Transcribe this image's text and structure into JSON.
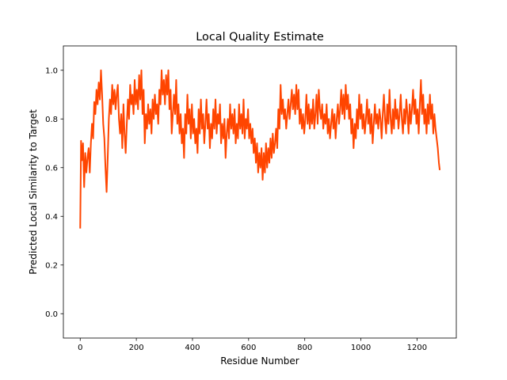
{
  "chart_data": {
    "type": "line",
    "title": "Local Quality Estimate",
    "xlabel": "Residue Number",
    "ylabel": "Predicted Local Similarity to Target",
    "xlim": [
      -60,
      1340
    ],
    "ylim": [
      -0.1,
      1.1
    ],
    "x_ticks": [
      0,
      200,
      400,
      600,
      800,
      1000,
      1200
    ],
    "y_ticks": [
      0.0,
      0.2,
      0.4,
      0.6,
      0.8,
      1.0
    ],
    "x_tick_labels": [
      "0",
      "200",
      "400",
      "600",
      "800",
      "1000",
      "1200"
    ],
    "y_tick_labels": [
      "0.0",
      "0.2",
      "0.4",
      "0.6",
      "0.8",
      "1.0"
    ],
    "grid": false,
    "series": [
      {
        "color": "#ff4500",
        "points": [
          [
            0,
            0.35
          ],
          [
            3,
            0.71
          ],
          [
            6,
            0.63
          ],
          [
            10,
            0.7
          ],
          [
            14,
            0.52
          ],
          [
            18,
            0.66
          ],
          [
            22,
            0.58
          ],
          [
            26,
            0.64
          ],
          [
            30,
            0.68
          ],
          [
            34,
            0.58
          ],
          [
            38,
            0.7
          ],
          [
            42,
            0.78
          ],
          [
            46,
            0.72
          ],
          [
            50,
            0.87
          ],
          [
            54,
            0.82
          ],
          [
            58,
            0.92
          ],
          [
            62,
            0.86
          ],
          [
            66,
            0.95
          ],
          [
            70,
            0.88
          ],
          [
            74,
            1.0
          ],
          [
            78,
            0.9
          ],
          [
            82,
            0.78
          ],
          [
            86,
            0.72
          ],
          [
            90,
            0.6
          ],
          [
            94,
            0.5
          ],
          [
            98,
            0.64
          ],
          [
            102,
            0.8
          ],
          [
            106,
            0.88
          ],
          [
            110,
            0.82
          ],
          [
            114,
            0.94
          ],
          [
            118,
            0.86
          ],
          [
            122,
            0.92
          ],
          [
            126,
            0.84
          ],
          [
            130,
            0.9
          ],
          [
            134,
            0.94
          ],
          [
            138,
            0.8
          ],
          [
            142,
            0.74
          ],
          [
            146,
            0.82
          ],
          [
            150,
            0.68
          ],
          [
            154,
            0.86
          ],
          [
            158,
            0.74
          ],
          [
            162,
            0.66
          ],
          [
            166,
            0.78
          ],
          [
            170,
            0.88
          ],
          [
            174,
            0.8
          ],
          [
            178,
            0.94
          ],
          [
            182,
            0.86
          ],
          [
            186,
            0.9
          ],
          [
            190,
            0.82
          ],
          [
            194,
            0.96
          ],
          [
            198,
            0.86
          ],
          [
            202,
            0.92
          ],
          [
            206,
            0.84
          ],
          [
            210,
            0.98
          ],
          [
            214,
            0.88
          ],
          [
            218,
            1.0
          ],
          [
            222,
            0.82
          ],
          [
            226,
            0.92
          ],
          [
            230,
            0.7
          ],
          [
            234,
            0.82
          ],
          [
            238,
            0.76
          ],
          [
            242,
            0.86
          ],
          [
            246,
            0.78
          ],
          [
            250,
            0.84
          ],
          [
            254,
            0.74
          ],
          [
            258,
            0.88
          ],
          [
            262,
            0.8
          ],
          [
            266,
            0.9
          ],
          [
            270,
            0.82
          ],
          [
            274,
            0.86
          ],
          [
            278,
            0.78
          ],
          [
            282,
            0.92
          ],
          [
            286,
            0.86
          ],
          [
            290,
            1.0
          ],
          [
            294,
            0.9
          ],
          [
            298,
            0.96
          ],
          [
            302,
            0.86
          ],
          [
            306,
            0.98
          ],
          [
            310,
            0.9
          ],
          [
            314,
            1.0
          ],
          [
            318,
            0.84
          ],
          [
            322,
            0.92
          ],
          [
            326,
            0.74
          ],
          [
            330,
            0.82
          ],
          [
            334,
            0.9
          ],
          [
            338,
            0.82
          ],
          [
            342,
            0.96
          ],
          [
            346,
            0.78
          ],
          [
            350,
            0.86
          ],
          [
            354,
            0.74
          ],
          [
            358,
            0.82
          ],
          [
            362,
            0.7
          ],
          [
            366,
            0.76
          ],
          [
            370,
            0.64
          ],
          [
            374,
            0.82
          ],
          [
            378,
            0.74
          ],
          [
            382,
            0.9
          ],
          [
            386,
            0.78
          ],
          [
            390,
            0.84
          ],
          [
            394,
            0.72
          ],
          [
            398,
            0.86
          ],
          [
            402,
            0.74
          ],
          [
            406,
            0.8
          ],
          [
            410,
            0.7
          ],
          [
            414,
            0.76
          ],
          [
            418,
            0.66
          ],
          [
            422,
            0.84
          ],
          [
            426,
            0.74
          ],
          [
            430,
            0.88
          ],
          [
            434,
            0.76
          ],
          [
            438,
            0.82
          ],
          [
            442,
            0.7
          ],
          [
            446,
            0.78
          ],
          [
            450,
            0.88
          ],
          [
            454,
            0.76
          ],
          [
            458,
            0.82
          ],
          [
            462,
            0.68
          ],
          [
            466,
            0.78
          ],
          [
            470,
            0.72
          ],
          [
            474,
            0.84
          ],
          [
            478,
            0.76
          ],
          [
            482,
            0.88
          ],
          [
            486,
            0.74
          ],
          [
            490,
            0.82
          ],
          [
            494,
            0.78
          ],
          [
            498,
            0.86
          ],
          [
            502,
            0.7
          ],
          [
            506,
            0.78
          ],
          [
            510,
            0.72
          ],
          [
            514,
            0.8
          ],
          [
            518,
            0.64
          ],
          [
            522,
            0.74
          ],
          [
            526,
            0.8
          ],
          [
            530,
            0.72
          ],
          [
            534,
            0.86
          ],
          [
            538,
            0.76
          ],
          [
            542,
            0.82
          ],
          [
            546,
            0.74
          ],
          [
            550,
            0.84
          ],
          [
            554,
            0.7
          ],
          [
            558,
            0.78
          ],
          [
            562,
            0.72
          ],
          [
            566,
            0.86
          ],
          [
            570,
            0.76
          ],
          [
            574,
            0.82
          ],
          [
            578,
            0.74
          ],
          [
            582,
            0.88
          ],
          [
            586,
            0.72
          ],
          [
            590,
            0.8
          ],
          [
            594,
            0.76
          ],
          [
            598,
            0.84
          ],
          [
            602,
            0.72
          ],
          [
            606,
            0.78
          ],
          [
            610,
            0.7
          ],
          [
            614,
            0.76
          ],
          [
            618,
            0.66
          ],
          [
            622,
            0.72
          ],
          [
            626,
            0.62
          ],
          [
            630,
            0.7
          ],
          [
            634,
            0.58
          ],
          [
            638,
            0.66
          ],
          [
            642,
            0.6
          ],
          [
            646,
            0.68
          ],
          [
            650,
            0.55
          ],
          [
            654,
            0.66
          ],
          [
            658,
            0.58
          ],
          [
            662,
            0.7
          ],
          [
            666,
            0.6
          ],
          [
            670,
            0.68
          ],
          [
            674,
            0.62
          ],
          [
            678,
            0.72
          ],
          [
            682,
            0.64
          ],
          [
            686,
            0.74
          ],
          [
            690,
            0.66
          ],
          [
            694,
            0.7
          ],
          [
            698,
            0.76
          ],
          [
            702,
            0.68
          ],
          [
            706,
            0.84
          ],
          [
            710,
            0.76
          ],
          [
            714,
            0.94
          ],
          [
            718,
            0.82
          ],
          [
            722,
            0.88
          ],
          [
            726,
            0.8
          ],
          [
            730,
            0.84
          ],
          [
            734,
            0.76
          ],
          [
            738,
            0.82
          ],
          [
            742,
            0.88
          ],
          [
            746,
            0.8
          ],
          [
            750,
            0.86
          ],
          [
            754,
            0.92
          ],
          [
            758,
            0.84
          ],
          [
            762,
            0.9
          ],
          [
            766,
            0.82
          ],
          [
            770,
            0.94
          ],
          [
            774,
            0.84
          ],
          [
            778,
            0.92
          ],
          [
            782,
            0.78
          ],
          [
            786,
            0.84
          ],
          [
            790,
            0.76
          ],
          [
            794,
            0.82
          ],
          [
            798,
            0.74
          ],
          [
            802,
            0.8
          ],
          [
            806,
            0.9
          ],
          [
            810,
            0.78
          ],
          [
            814,
            0.86
          ],
          [
            818,
            0.76
          ],
          [
            822,
            0.84
          ],
          [
            826,
            0.78
          ],
          [
            830,
            0.88
          ],
          [
            834,
            0.76
          ],
          [
            838,
            0.82
          ],
          [
            842,
            0.9
          ],
          [
            846,
            0.78
          ],
          [
            850,
            0.92
          ],
          [
            854,
            0.84
          ],
          [
            858,
            0.8
          ],
          [
            862,
            0.86
          ],
          [
            866,
            0.76
          ],
          [
            870,
            0.82
          ],
          [
            874,
            0.78
          ],
          [
            878,
            0.86
          ],
          [
            882,
            0.74
          ],
          [
            886,
            0.8
          ],
          [
            890,
            0.72
          ],
          [
            894,
            0.78
          ],
          [
            898,
            0.84
          ],
          [
            902,
            0.76
          ],
          [
            906,
            0.82
          ],
          [
            910,
            0.72
          ],
          [
            914,
            0.8
          ],
          [
            918,
            0.86
          ],
          [
            922,
            0.78
          ],
          [
            926,
            0.84
          ],
          [
            930,
            0.92
          ],
          [
            934,
            0.82
          ],
          [
            938,
            0.9
          ],
          [
            942,
            0.8
          ],
          [
            946,
            0.94
          ],
          [
            950,
            0.84
          ],
          [
            954,
            0.9
          ],
          [
            958,
            0.8
          ],
          [
            962,
            0.86
          ],
          [
            966,
            0.74
          ],
          [
            970,
            0.8
          ],
          [
            974,
            0.68
          ],
          [
            978,
            0.78
          ],
          [
            982,
            0.72
          ],
          [
            986,
            0.84
          ],
          [
            990,
            0.76
          ],
          [
            994,
            0.9
          ],
          [
            998,
            0.8
          ],
          [
            1002,
            0.86
          ],
          [
            1006,
            0.76
          ],
          [
            1010,
            0.82
          ],
          [
            1014,
            0.74
          ],
          [
            1018,
            0.8
          ],
          [
            1022,
            0.88
          ],
          [
            1026,
            0.78
          ],
          [
            1030,
            0.84
          ],
          [
            1034,
            0.74
          ],
          [
            1038,
            0.82
          ],
          [
            1042,
            0.7
          ],
          [
            1046,
            0.78
          ],
          [
            1050,
            0.86
          ],
          [
            1054,
            0.78
          ],
          [
            1058,
            0.82
          ],
          [
            1062,
            0.76
          ],
          [
            1066,
            0.84
          ],
          [
            1070,
            0.8
          ],
          [
            1074,
            0.72
          ],
          [
            1078,
            0.82
          ],
          [
            1082,
            0.9
          ],
          [
            1086,
            0.8
          ],
          [
            1090,
            0.74
          ],
          [
            1094,
            0.86
          ],
          [
            1098,
            0.78
          ],
          [
            1102,
            0.92
          ],
          [
            1106,
            0.8
          ],
          [
            1110,
            0.74
          ],
          [
            1114,
            0.84
          ],
          [
            1118,
            0.76
          ],
          [
            1122,
            0.88
          ],
          [
            1126,
            0.8
          ],
          [
            1130,
            0.84
          ],
          [
            1134,
            0.76
          ],
          [
            1138,
            0.82
          ],
          [
            1142,
            0.9
          ],
          [
            1146,
            0.8
          ],
          [
            1150,
            0.74
          ],
          [
            1154,
            0.84
          ],
          [
            1158,
            0.78
          ],
          [
            1162,
            0.88
          ],
          [
            1166,
            0.82
          ],
          [
            1170,
            0.74
          ],
          [
            1174,
            0.86
          ],
          [
            1178,
            0.78
          ],
          [
            1182,
            0.84
          ],
          [
            1186,
            0.92
          ],
          [
            1190,
            0.82
          ],
          [
            1194,
            0.88
          ],
          [
            1198,
            0.78
          ],
          [
            1202,
            0.84
          ],
          [
            1206,
            0.74
          ],
          [
            1210,
            0.86
          ],
          [
            1214,
            0.96
          ],
          [
            1218,
            0.82
          ],
          [
            1222,
            0.9
          ],
          [
            1226,
            0.78
          ],
          [
            1230,
            0.84
          ],
          [
            1234,
            0.74
          ],
          [
            1238,
            0.86
          ],
          [
            1242,
            0.78
          ],
          [
            1246,
            0.9
          ],
          [
            1250,
            0.8
          ],
          [
            1254,
            0.86
          ],
          [
            1258,
            0.74
          ],
          [
            1262,
            0.82
          ],
          [
            1266,
            0.76
          ],
          [
            1270,
            0.72
          ],
          [
            1274,
            0.68
          ],
          [
            1278,
            0.62
          ],
          [
            1281,
            0.59
          ]
        ]
      }
    ]
  }
}
